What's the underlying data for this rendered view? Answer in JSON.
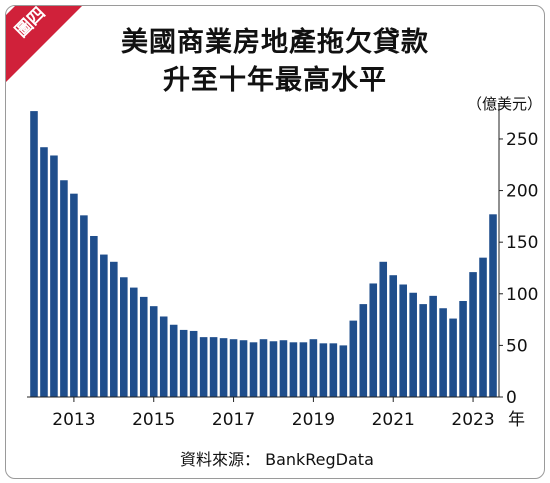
{
  "badge": {
    "label": "圖四",
    "color": "#d0213a"
  },
  "title": {
    "line1": "美國商業房地產拖欠貸款",
    "line2": "升至十年最高水平"
  },
  "source": "資料來源： BankRegData",
  "chart_data": {
    "type": "bar",
    "unit_label": "（億美元）",
    "x_suffix": "年",
    "bar_color": "#1f4e8c",
    "ylim": [
      0,
      280
    ],
    "y_ticks": [
      0,
      50,
      100,
      150,
      200,
      250
    ],
    "x_ticks": [
      {
        "label": "2013",
        "index": 4
      },
      {
        "label": "2015",
        "index": 12
      },
      {
        "label": "2017",
        "index": 20
      },
      {
        "label": "2019",
        "index": 28
      },
      {
        "label": "2021",
        "index": 36
      },
      {
        "label": "2023",
        "index": 44
      }
    ],
    "categories": [
      "2012Q1",
      "2012Q2",
      "2012Q3",
      "2012Q4",
      "2013Q1",
      "2013Q2",
      "2013Q3",
      "2013Q4",
      "2014Q1",
      "2014Q2",
      "2014Q3",
      "2014Q4",
      "2015Q1",
      "2015Q2",
      "2015Q3",
      "2015Q4",
      "2016Q1",
      "2016Q2",
      "2016Q3",
      "2016Q4",
      "2017Q1",
      "2017Q2",
      "2017Q3",
      "2017Q4",
      "2018Q1",
      "2018Q2",
      "2018Q3",
      "2018Q4",
      "2019Q1",
      "2019Q2",
      "2019Q3",
      "2019Q4",
      "2020Q1",
      "2020Q2",
      "2020Q3",
      "2020Q4",
      "2021Q1",
      "2021Q2",
      "2021Q3",
      "2021Q4",
      "2022Q1",
      "2022Q2",
      "2022Q3",
      "2022Q4",
      "2023Q1",
      "2023Q2",
      "2023Q3"
    ],
    "values": [
      277,
      242,
      234,
      210,
      197,
      176,
      156,
      138,
      131,
      116,
      106,
      97,
      88,
      78,
      70,
      65,
      64,
      58,
      58,
      57,
      56,
      55,
      53,
      56,
      54,
      55,
      53,
      53,
      56,
      52,
      52,
      50,
      74,
      90,
      110,
      131,
      118,
      109,
      101,
      90,
      98,
      86,
      76,
      93,
      121,
      135,
      177
    ]
  }
}
